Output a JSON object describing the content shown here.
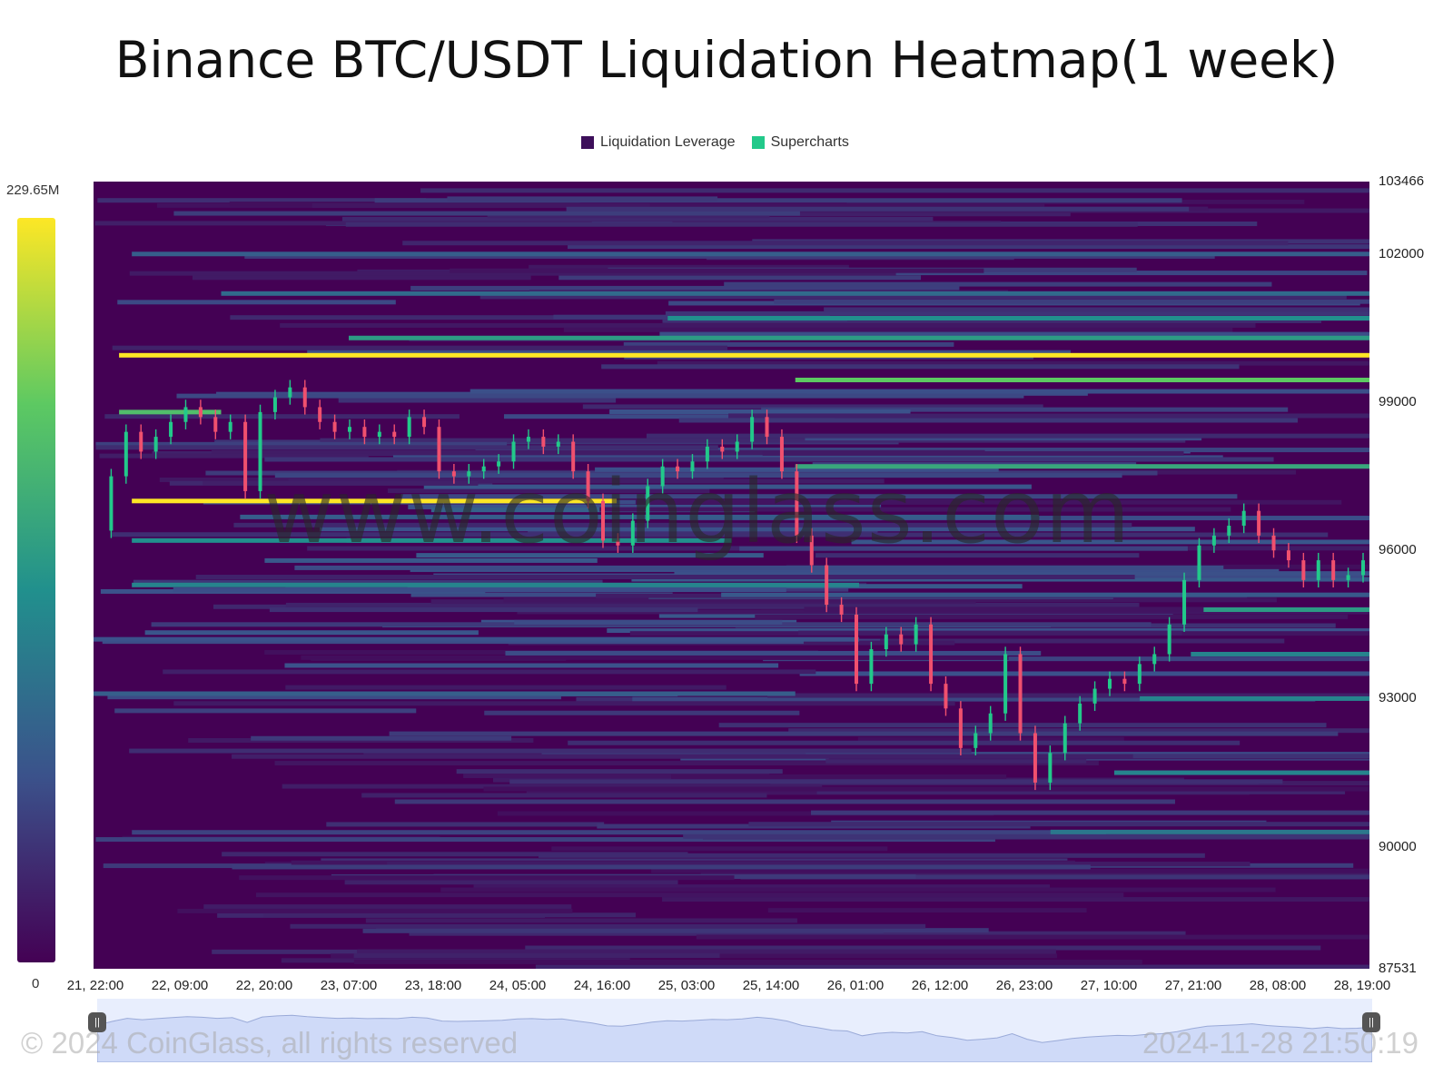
{
  "chart_data": {
    "type": "heatmap",
    "title": "Binance BTC/USDT Liquidation Heatmap(1 week)",
    "legend": [
      {
        "name": "Liquidation Leverage",
        "color": "#3d0f5a"
      },
      {
        "name": "Supercharts",
        "color": "#22c98a"
      }
    ],
    "legend_position": "top-center",
    "colorbar": {
      "min_label": "0",
      "max_label": "229.65M",
      "colors": [
        "#440154",
        "#3b528b",
        "#21908d",
        "#5dc962",
        "#fde725"
      ]
    },
    "y_axis": {
      "ticks": [
        "103466",
        "102000",
        "99000",
        "96000",
        "93000",
        "90000",
        "87531"
      ],
      "min": 87531,
      "max": 103466,
      "tick_values": [
        103466,
        102000,
        99000,
        96000,
        93000,
        90000,
        87531
      ]
    },
    "x_axis": {
      "ticks": [
        "21, 22:00",
        "22, 09:00",
        "22, 20:00",
        "23, 07:00",
        "23, 18:00",
        "24, 05:00",
        "24, 16:00",
        "25, 03:00",
        "25, 14:00",
        "26, 01:00",
        "26, 12:00",
        "26, 23:00",
        "27, 10:00",
        "27, 21:00",
        "28, 08:00",
        "28, 19:00"
      ]
    },
    "price_series": [
      {
        "t": 0,
        "p": 96400
      },
      {
        "t": 2,
        "p": 97500
      },
      {
        "t": 4,
        "p": 98400
      },
      {
        "t": 6,
        "p": 98000
      },
      {
        "t": 8,
        "p": 98300
      },
      {
        "t": 10,
        "p": 98600
      },
      {
        "t": 12,
        "p": 98900
      },
      {
        "t": 14,
        "p": 98700
      },
      {
        "t": 16,
        "p": 98400
      },
      {
        "t": 18,
        "p": 98600
      },
      {
        "t": 20,
        "p": 97200
      },
      {
        "t": 22,
        "p": 98800
      },
      {
        "t": 24,
        "p": 99100
      },
      {
        "t": 26,
        "p": 99300
      },
      {
        "t": 28,
        "p": 98900
      },
      {
        "t": 30,
        "p": 98600
      },
      {
        "t": 32,
        "p": 98400
      },
      {
        "t": 34,
        "p": 98500
      },
      {
        "t": 36,
        "p": 98300
      },
      {
        "t": 38,
        "p": 98400
      },
      {
        "t": 40,
        "p": 98300
      },
      {
        "t": 42,
        "p": 98700
      },
      {
        "t": 44,
        "p": 98500
      },
      {
        "t": 46,
        "p": 97600
      },
      {
        "t": 48,
        "p": 97500
      },
      {
        "t": 50,
        "p": 97600
      },
      {
        "t": 52,
        "p": 97700
      },
      {
        "t": 54,
        "p": 97800
      },
      {
        "t": 56,
        "p": 98200
      },
      {
        "t": 58,
        "p": 98300
      },
      {
        "t": 60,
        "p": 98100
      },
      {
        "t": 62,
        "p": 98200
      },
      {
        "t": 64,
        "p": 97600
      },
      {
        "t": 66,
        "p": 97000
      },
      {
        "t": 68,
        "p": 96200
      },
      {
        "t": 70,
        "p": 96100
      },
      {
        "t": 72,
        "p": 96600
      },
      {
        "t": 74,
        "p": 97300
      },
      {
        "t": 76,
        "p": 97700
      },
      {
        "t": 78,
        "p": 97600
      },
      {
        "t": 80,
        "p": 97800
      },
      {
        "t": 82,
        "p": 98100
      },
      {
        "t": 84,
        "p": 98000
      },
      {
        "t": 86,
        "p": 98200
      },
      {
        "t": 88,
        "p": 98700
      },
      {
        "t": 90,
        "p": 98300
      },
      {
        "t": 92,
        "p": 97600
      },
      {
        "t": 94,
        "p": 96300
      },
      {
        "t": 96,
        "p": 95700
      },
      {
        "t": 98,
        "p": 94900
      },
      {
        "t": 100,
        "p": 94700
      },
      {
        "t": 102,
        "p": 93300
      },
      {
        "t": 104,
        "p": 94000
      },
      {
        "t": 106,
        "p": 94300
      },
      {
        "t": 108,
        "p": 94100
      },
      {
        "t": 110,
        "p": 94500
      },
      {
        "t": 112,
        "p": 93300
      },
      {
        "t": 114,
        "p": 92800
      },
      {
        "t": 116,
        "p": 92000
      },
      {
        "t": 118,
        "p": 92300
      },
      {
        "t": 120,
        "p": 92700
      },
      {
        "t": 122,
        "p": 93900
      },
      {
        "t": 124,
        "p": 92300
      },
      {
        "t": 126,
        "p": 91300
      },
      {
        "t": 128,
        "p": 91900
      },
      {
        "t": 130,
        "p": 92500
      },
      {
        "t": 132,
        "p": 92900
      },
      {
        "t": 134,
        "p": 93200
      },
      {
        "t": 136,
        "p": 93400
      },
      {
        "t": 138,
        "p": 93300
      },
      {
        "t": 140,
        "p": 93700
      },
      {
        "t": 142,
        "p": 93900
      },
      {
        "t": 144,
        "p": 94500
      },
      {
        "t": 146,
        "p": 95400
      },
      {
        "t": 148,
        "p": 96100
      },
      {
        "t": 150,
        "p": 96300
      },
      {
        "t": 152,
        "p": 96500
      },
      {
        "t": 154,
        "p": 96800
      },
      {
        "t": 156,
        "p": 96300
      },
      {
        "t": 158,
        "p": 96000
      },
      {
        "t": 160,
        "p": 95800
      },
      {
        "t": 162,
        "p": 95400
      },
      {
        "t": 164,
        "p": 95800
      },
      {
        "t": 166,
        "p": 95400
      },
      {
        "t": 168,
        "p": 95500
      },
      {
        "t": 170,
        "p": 95800
      }
    ],
    "liquidation_bands": [
      {
        "price": 99950,
        "from": 0.02,
        "to": 1.0,
        "intensity": 1.0
      },
      {
        "price": 97000,
        "from": 0.03,
        "to": 0.41,
        "intensity": 1.0
      },
      {
        "price": 99450,
        "from": 0.55,
        "to": 1.0,
        "intensity": 0.75
      },
      {
        "price": 98800,
        "from": 0.02,
        "to": 0.1,
        "intensity": 0.7
      },
      {
        "price": 97700,
        "from": 0.55,
        "to": 1.0,
        "intensity": 0.6
      },
      {
        "price": 100300,
        "from": 0.2,
        "to": 1.0,
        "intensity": 0.55
      },
      {
        "price": 100700,
        "from": 0.45,
        "to": 1.0,
        "intensity": 0.5
      },
      {
        "price": 96200,
        "from": 0.03,
        "to": 0.5,
        "intensity": 0.5
      },
      {
        "price": 95300,
        "from": 0.03,
        "to": 0.6,
        "intensity": 0.45
      },
      {
        "price": 94800,
        "from": 0.87,
        "to": 1.0,
        "intensity": 0.55
      },
      {
        "price": 93900,
        "from": 0.86,
        "to": 1.0,
        "intensity": 0.45
      },
      {
        "price": 93000,
        "from": 0.82,
        "to": 1.0,
        "intensity": 0.45
      },
      {
        "price": 91500,
        "from": 0.8,
        "to": 1.0,
        "intensity": 0.45
      },
      {
        "price": 90300,
        "from": 0.75,
        "to": 1.0,
        "intensity": 0.4
      },
      {
        "price": 101200,
        "from": 0.1,
        "to": 1.0,
        "intensity": 0.35
      },
      {
        "price": 102000,
        "from": 0.03,
        "to": 1.0,
        "intensity": 0.3
      },
      {
        "price": 93100,
        "from": 0.0,
        "to": 0.55,
        "intensity": 0.3
      },
      {
        "price": 94200,
        "from": 0.0,
        "to": 0.6,
        "intensity": 0.25
      }
    ]
  },
  "watermark": "www.coinglass.com",
  "footer": {
    "copyright": "© 2024 CoinGlass, all rights reserved",
    "timestamp": "2024-11-28 21:50:19"
  },
  "colors": {
    "accent": "#fde725",
    "background": "#440154",
    "candle_up": "#22c98a",
    "candle_down": "#f0506e"
  }
}
